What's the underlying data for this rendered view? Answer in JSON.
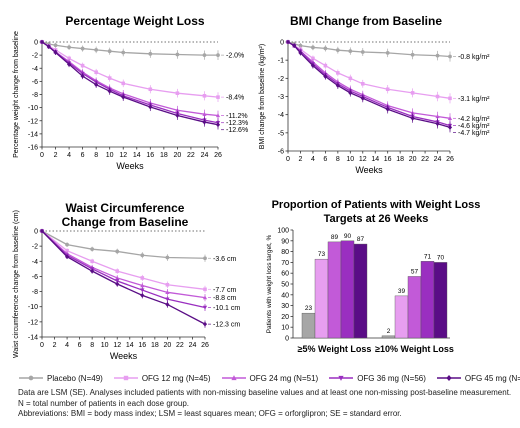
{
  "colors": {
    "placebo": "#a6a6a6",
    "ofg12": "#e79ef0",
    "ofg24": "#c25ad8",
    "ofg36": "#9a2fc0",
    "ofg45": "#5a0d86"
  },
  "legend": [
    {
      "key": "placebo",
      "label": "Placebo (N=49)",
      "marker": "circle"
    },
    {
      "key": "ofg12",
      "label": "OFG 12 mg (N=45)",
      "marker": "square"
    },
    {
      "key": "ofg24",
      "label": "OFG 24 mg (N=51)",
      "marker": "triangle"
    },
    {
      "key": "ofg36",
      "label": "OFG 36 mg (N=56)",
      "marker": "triangle-down"
    },
    {
      "key": "ofg45",
      "label": "OFG 45 mg (N=57)",
      "marker": "diamond"
    }
  ],
  "footnote": {
    "line1": "Data are LSM (SE). Analyses included patients with non-missing baseline values and at least one non-missing post-baseline measurement. N = total number of patients in each dose group.",
    "line2": "Abbreviations: BMI = body mass index; LSM = least squares mean; OFG = orforglipron; SE = standard error."
  },
  "chart_data": [
    {
      "type": "line",
      "title": "Percentage Weight Loss",
      "xlabel": "Weeks",
      "ylabel": "Percentage weight change from baseline",
      "x": [
        0,
        1,
        2,
        4,
        6,
        8,
        10,
        12,
        16,
        20,
        24,
        26
      ],
      "xticks": [
        0,
        2,
        4,
        6,
        8,
        10,
        12,
        14,
        16,
        18,
        20,
        22,
        24,
        26
      ],
      "yticks": [
        0,
        -2,
        -4,
        -6,
        -8,
        -10,
        -12,
        -14,
        -16
      ],
      "ylim": [
        -16,
        0
      ],
      "series": [
        {
          "key": "placebo",
          "values": [
            0,
            -0.3,
            -0.5,
            -0.8,
            -1.0,
            -1.2,
            -1.4,
            -1.6,
            -1.8,
            -1.9,
            -2.0,
            -2.0
          ],
          "end_label": "-2.0%"
        },
        {
          "key": "ofg12",
          "values": [
            0,
            -0.6,
            -1.2,
            -2.5,
            -3.6,
            -4.6,
            -5.5,
            -6.3,
            -7.2,
            -7.8,
            -8.2,
            -8.4
          ],
          "end_label": "-8.4%"
        },
        {
          "key": "ofg24",
          "values": [
            0,
            -0.7,
            -1.5,
            -3.0,
            -4.6,
            -5.9,
            -7.0,
            -7.9,
            -9.3,
            -10.4,
            -11.0,
            -11.2
          ],
          "end_label": "-11.2%"
        },
        {
          "key": "ofg36",
          "values": [
            0,
            -0.7,
            -1.5,
            -3.2,
            -4.8,
            -6.1,
            -7.2,
            -8.2,
            -9.6,
            -10.9,
            -11.9,
            -12.3
          ],
          "end_label": "-12.3%"
        },
        {
          "key": "ofg45",
          "values": [
            0,
            -0.7,
            -1.6,
            -3.4,
            -5.2,
            -6.5,
            -7.5,
            -8.4,
            -9.9,
            -11.2,
            -12.2,
            -12.6
          ],
          "end_label": "-12.6%"
        }
      ]
    },
    {
      "type": "line",
      "title": "BMI Change from Baseline",
      "xlabel": "Weeks",
      "ylabel": "BMI change from baseline (kg/m²)",
      "x": [
        0,
        1,
        2,
        4,
        6,
        8,
        10,
        12,
        16,
        20,
        24,
        26
      ],
      "xticks": [
        0,
        2,
        4,
        6,
        8,
        10,
        12,
        14,
        16,
        18,
        20,
        22,
        24,
        26
      ],
      "yticks": [
        0,
        -1,
        -2,
        -3,
        -4,
        -5,
        -6
      ],
      "ylim": [
        -6,
        0
      ],
      "series": [
        {
          "key": "placebo",
          "values": [
            0,
            -0.1,
            -0.2,
            -0.3,
            -0.35,
            -0.45,
            -0.5,
            -0.55,
            -0.6,
            -0.7,
            -0.75,
            -0.8
          ],
          "end_label": "-0.8 kg/m²"
        },
        {
          "key": "ofg12",
          "values": [
            0,
            -0.2,
            -0.4,
            -0.9,
            -1.3,
            -1.7,
            -2.0,
            -2.3,
            -2.6,
            -2.8,
            -3.0,
            -3.1
          ],
          "end_label": "-3.1 kg/m²"
        },
        {
          "key": "ofg24",
          "values": [
            0,
            -0.2,
            -0.5,
            -1.1,
            -1.7,
            -2.2,
            -2.6,
            -2.9,
            -3.5,
            -3.9,
            -4.1,
            -4.2
          ],
          "end_label": "-4.2 kg/m²"
        },
        {
          "key": "ofg36",
          "values": [
            0,
            -0.2,
            -0.5,
            -1.2,
            -1.8,
            -2.3,
            -2.7,
            -3.0,
            -3.6,
            -4.1,
            -4.4,
            -4.6
          ],
          "end_label": "-4.6 kg/m²"
        },
        {
          "key": "ofg45",
          "values": [
            0,
            -0.2,
            -0.6,
            -1.3,
            -1.9,
            -2.4,
            -2.8,
            -3.1,
            -3.7,
            -4.2,
            -4.5,
            -4.7
          ],
          "end_label": "-4.7 kg/m²"
        }
      ]
    },
    {
      "type": "line",
      "title": "Waist Circumference",
      "subtitle": "Change from Baseline",
      "xlabel": "Weeks",
      "ylabel": "Waist circumference change from baseline (cm)",
      "x": [
        0,
        4,
        8,
        12,
        16,
        20,
        26
      ],
      "xticks": [
        0,
        2,
        4,
        6,
        8,
        10,
        12,
        14,
        16,
        18,
        20,
        22,
        24,
        26
      ],
      "yticks": [
        0,
        -2,
        -4,
        -6,
        -8,
        -10,
        -12,
        -14
      ],
      "ylim": [
        -14,
        0
      ],
      "series": [
        {
          "key": "placebo",
          "values": [
            0,
            -1.8,
            -2.4,
            -2.7,
            -3.2,
            -3.5,
            -3.6
          ],
          "end_label": "-3.6 cm"
        },
        {
          "key": "ofg12",
          "values": [
            0,
            -2.6,
            -4.0,
            -5.3,
            -6.2,
            -7.1,
            -7.7
          ],
          "end_label": "-7.7 cm"
        },
        {
          "key": "ofg24",
          "values": [
            0,
            -3.0,
            -4.8,
            -6.2,
            -7.2,
            -8.1,
            -8.8
          ],
          "end_label": "-8.8 cm"
        },
        {
          "key": "ofg36",
          "values": [
            0,
            -3.2,
            -5.0,
            -6.6,
            -7.8,
            -9.0,
            -10.1
          ],
          "end_label": "-10.1 cm"
        },
        {
          "key": "ofg45",
          "values": [
            0,
            -3.4,
            -5.3,
            -7.0,
            -8.5,
            -9.7,
            -12.3
          ],
          "end_label": "-12.3 cm"
        }
      ]
    },
    {
      "type": "bar",
      "title": "Proportion of Patients with Weight Loss",
      "subtitle": "Targets at 26 Weeks",
      "ylabel": "Patients with weight loss target, %",
      "categories": [
        "≥5% Weight Loss",
        "≥10% Weight Loss"
      ],
      "yticks": [
        0,
        10,
        20,
        30,
        40,
        50,
        60,
        70,
        80,
        90,
        100
      ],
      "ylim": [
        0,
        100
      ],
      "series": [
        {
          "key": "placebo",
          "values": [
            23,
            2
          ]
        },
        {
          "key": "ofg12",
          "values": [
            73,
            39
          ]
        },
        {
          "key": "ofg24",
          "values": [
            89,
            57
          ]
        },
        {
          "key": "ofg36",
          "values": [
            90,
            71
          ]
        },
        {
          "key": "ofg45",
          "values": [
            87,
            70
          ]
        }
      ]
    }
  ]
}
